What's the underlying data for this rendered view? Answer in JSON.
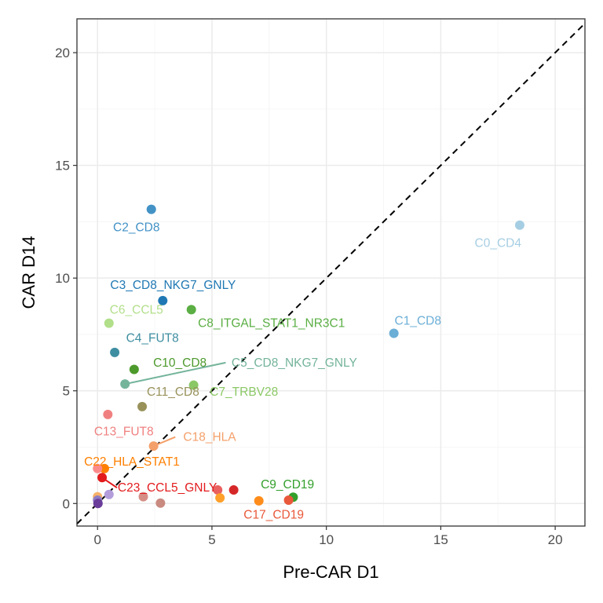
{
  "chart_data": {
    "type": "scatter",
    "title": "",
    "xlabel": "Pre-CAR D1",
    "ylabel": "CAR D14",
    "xlim": [
      -0.9,
      21.3
    ],
    "ylim": [
      -1.0,
      21.5
    ],
    "x_ticks": [
      0,
      5,
      10,
      15,
      20
    ],
    "y_ticks": [
      0,
      5,
      10,
      15,
      20
    ],
    "x_tick_labels": [
      "0",
      "5",
      "10",
      "15",
      "20"
    ],
    "y_tick_labels": [
      "0",
      "5",
      "10",
      "15",
      "20"
    ],
    "grid": true,
    "reference_line": {
      "slope": 1,
      "intercept": 0,
      "style": "dashed",
      "color": "#000000"
    },
    "points": [
      {
        "label": "C0_CD4",
        "x": 18.45,
        "y": 12.35,
        "color": "#A6CEE3",
        "label_x": 17.5,
        "label_y": 11.55
      },
      {
        "label": "C1_CD8",
        "x": 12.95,
        "y": 7.55,
        "color": "#6BAED6",
        "label_x": 14.0,
        "label_y": 8.1
      },
      {
        "label": "C2_CD8",
        "x": 2.35,
        "y": 13.05,
        "color": "#4292C6",
        "label_x": 1.7,
        "label_y": 12.25
      },
      {
        "label": "C3_CD8_NKG7_GNLY",
        "x": 2.85,
        "y": 9.0,
        "color": "#1F78B4",
        "label_x": 3.3,
        "label_y": 9.7
      },
      {
        "label": "C4_FUT8",
        "x": 0.75,
        "y": 6.7,
        "color": "#3E8EA1",
        "label_x": 2.4,
        "label_y": 7.35
      },
      {
        "label": "C5_CD8_NKG7_GNLY",
        "x": 1.2,
        "y": 5.3,
        "color": "#74B49B",
        "label_x": 8.6,
        "label_y": 6.25,
        "segment_to": [
          5.6,
          6.25
        ]
      },
      {
        "label": "C6_CCL5",
        "x": 0.5,
        "y": 8.0,
        "color": "#B2DF8A",
        "label_x": 1.7,
        "label_y": 8.6
      },
      {
        "label": "C7_TRBV28",
        "x": 4.2,
        "y": 5.25,
        "color": "#8BC865",
        "label_x": 6.4,
        "label_y": 4.95
      },
      {
        "label": "C8_ITGAL_STAT1_NR3C1",
        "x": 4.1,
        "y": 8.6,
        "color": "#5AAE43",
        "label_x": 7.6,
        "label_y": 8.0
      },
      {
        "label": "C9_CD19",
        "x": 8.55,
        "y": 0.28,
        "color": "#33A02C",
        "label_x": 8.3,
        "label_y": 0.85
      },
      {
        "label": "C10_CD8",
        "x": 1.6,
        "y": 5.95,
        "color": "#4D9A2C",
        "label_x": 3.6,
        "label_y": 6.25
      },
      {
        "label": "C11_CD8",
        "x": 1.95,
        "y": 4.3,
        "color": "#98925A",
        "label_x": 3.3,
        "label_y": 4.95
      },
      {
        "label": "C13_FUT8",
        "x": 0.45,
        "y": 3.95,
        "color": "#F08080",
        "label_x": 1.15,
        "label_y": 3.2
      },
      {
        "label": "C17_CD19",
        "x": 8.35,
        "y": 0.15,
        "color": "#E8583A",
        "label_x": 7.7,
        "label_y": -0.5
      },
      {
        "label": "C18_HLA",
        "x": 2.45,
        "y": 2.55,
        "color": "#F4A06A",
        "label_x": 4.9,
        "label_y": 2.95,
        "segment_to": [
          3.4,
          2.95
        ]
      },
      {
        "label": "C22_HLA_STAT1",
        "x": 0.3,
        "y": 1.55,
        "color": "#FF7F00",
        "label_x": 1.5,
        "label_y": 1.85
      },
      {
        "label": "C23_CCL5_GNLY",
        "x": 0.2,
        "y": 1.15,
        "color": "#E31A1C",
        "label_x": 3.05,
        "label_y": 0.7,
        "segment_to": [
          0.85,
          0.7
        ]
      },
      {
        "label": "",
        "x": 5.25,
        "y": 0.6,
        "color": "#E9605E"
      },
      {
        "label": "",
        "x": 5.95,
        "y": 0.6,
        "color": "#D62728"
      },
      {
        "label": "",
        "x": 5.35,
        "y": 0.25,
        "color": "#FFA02A"
      },
      {
        "label": "",
        "x": 7.05,
        "y": 0.12,
        "color": "#FF8C1A"
      },
      {
        "label": "",
        "x": 0.5,
        "y": 0.4,
        "color": "#B39DDB"
      },
      {
        "label": "",
        "x": 2.0,
        "y": 0.3,
        "color": "#D68F86"
      },
      {
        "label": "",
        "x": 2.75,
        "y": 0.02,
        "color": "#C98A80"
      },
      {
        "label": "",
        "x": 0.0,
        "y": 0.3,
        "color": "#F7B26B"
      },
      {
        "label": "",
        "x": 0.0,
        "y": 0.15,
        "color": "#8E7CC3"
      },
      {
        "label": "",
        "x": 0.02,
        "y": 0.0,
        "color": "#6A3D9A"
      },
      {
        "label": "",
        "x": 0.0,
        "y": 1.55,
        "color": "#FB8B8B"
      }
    ]
  },
  "colors": {
    "background": "#ffffff",
    "grid_major": "#ebebeb",
    "grid_minor": "#f4f4f4",
    "panel_border": "#333333"
  }
}
